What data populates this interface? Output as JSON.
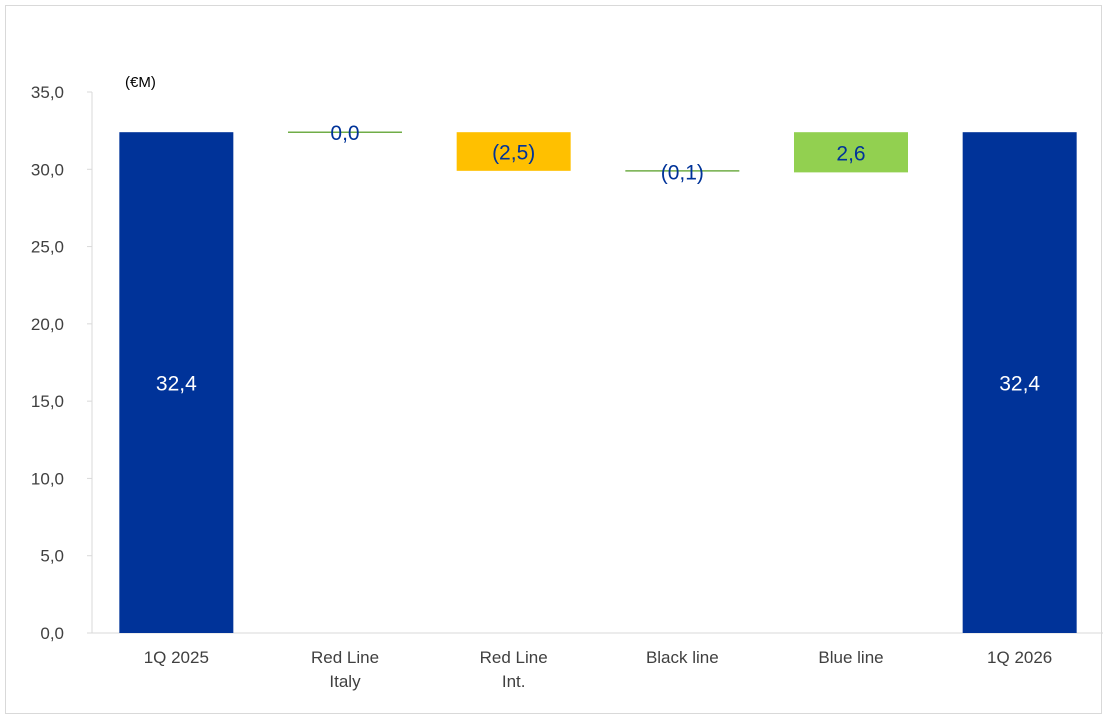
{
  "chart_data": {
    "type": "bar",
    "subtype": "waterfall",
    "unit_label": "(€M)",
    "categories": [
      {
        "lines": [
          "1Q 2025"
        ]
      },
      {
        "lines": [
          "Red Line",
          "Italy"
        ]
      },
      {
        "lines": [
          "Red Line",
          "Int."
        ]
      },
      {
        "lines": [
          "Black line"
        ]
      },
      {
        "lines": [
          "Blue line"
        ]
      },
      {
        "lines": [
          "1Q 2026"
        ]
      }
    ],
    "bars": [
      {
        "kind": "total",
        "start": 0,
        "end": 32.4,
        "value": 32.4,
        "label": "32,4"
      },
      {
        "kind": "delta",
        "start": 32.4,
        "end": 32.4,
        "value": 0.0,
        "label": "0,0"
      },
      {
        "kind": "delta",
        "start": 32.4,
        "end": 29.9,
        "value": -2.5,
        "label": "(2,5)"
      },
      {
        "kind": "delta",
        "start": 29.9,
        "end": 29.8,
        "value": -0.1,
        "label": "(0,1)"
      },
      {
        "kind": "delta",
        "start": 29.8,
        "end": 32.4,
        "value": 2.6,
        "label": "2,6"
      },
      {
        "kind": "total",
        "start": 0,
        "end": 32.4,
        "value": 32.4,
        "label": "32,4"
      }
    ],
    "ylim": [
      0,
      35
    ],
    "yticks": [
      {
        "value": 0,
        "label": "0,0"
      },
      {
        "value": 5,
        "label": "5,0"
      },
      {
        "value": 10,
        "label": "10,0"
      },
      {
        "value": 15,
        "label": "15,0"
      },
      {
        "value": 20,
        "label": "20,0"
      },
      {
        "value": 25,
        "label": "25,0"
      },
      {
        "value": 30,
        "label": "30,0"
      },
      {
        "value": 35,
        "label": "35,0"
      }
    ],
    "grid": false,
    "legend": "none",
    "colors": {
      "total": "#003399",
      "negative": "#FFC000",
      "positive": "#92D050",
      "zero_line": "#70AD47",
      "label_on_total": "#FFFFFF",
      "label_on_delta": "#003399"
    }
  }
}
